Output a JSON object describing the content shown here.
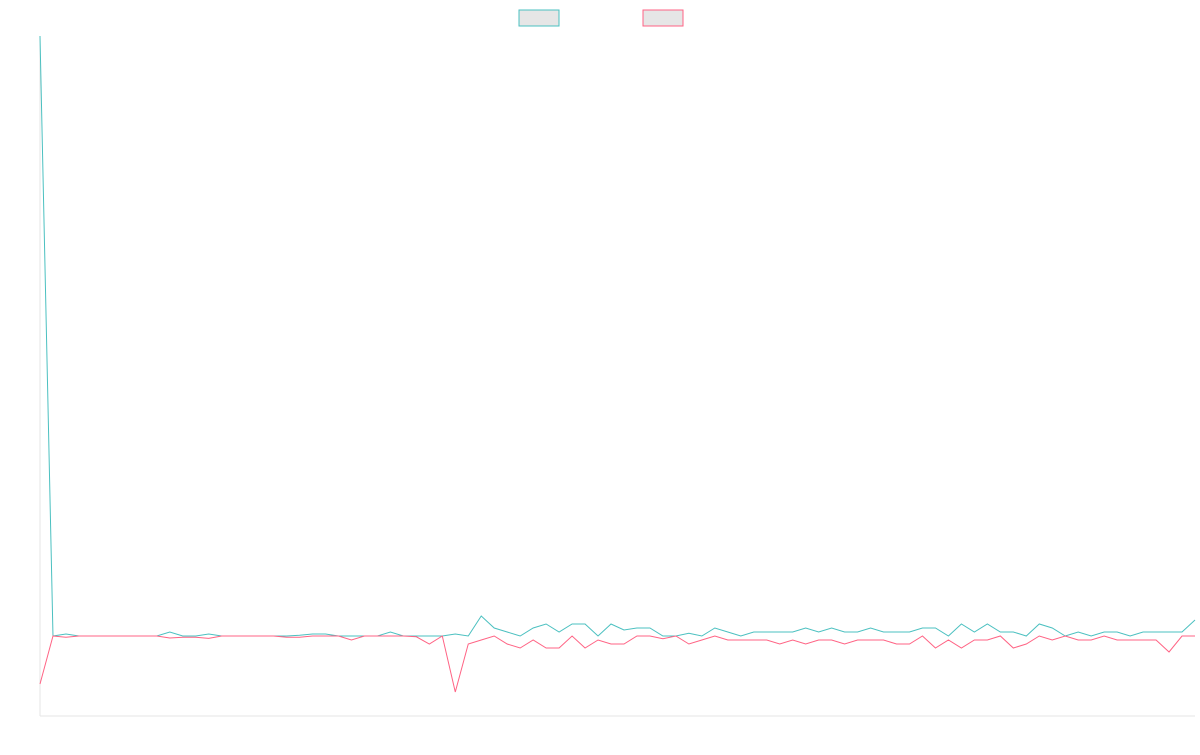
{
  "chart_data": {
    "type": "line",
    "title": "",
    "xlabel": "",
    "ylabel": "",
    "x": [
      1,
      2,
      3,
      4,
      5,
      6,
      7,
      8,
      9,
      10,
      11,
      12,
      13,
      14,
      15,
      16,
      17,
      18,
      19,
      20,
      21,
      22,
      23,
      24,
      25,
      26,
      27,
      28,
      29,
      30,
      31,
      32,
      33,
      34,
      35,
      36,
      37,
      38,
      39,
      40,
      41,
      42,
      43,
      44,
      45,
      46,
      47,
      48,
      49,
      50,
      51,
      52,
      53,
      54,
      55,
      56,
      57,
      58,
      59,
      60,
      61,
      62,
      63,
      64,
      65,
      66,
      67,
      68,
      69,
      70,
      71,
      72,
      73,
      74,
      75,
      76,
      77,
      78,
      79,
      80,
      81,
      82,
      83,
      84,
      85,
      86,
      87,
      88,
      89,
      90
    ],
    "ylim": [
      -20,
      150
    ],
    "grid": false,
    "legend_position": "top-center",
    "series": [
      {
        "name": "",
        "color": "#4bc0c0",
        "values": [
          150,
          0,
          0.5,
          0,
          0,
          0,
          0,
          0,
          0,
          0,
          1,
          0,
          0,
          0.5,
          0,
          0,
          0,
          0,
          0,
          0,
          0.2,
          0.5,
          0.5,
          0,
          0,
          0,
          0,
          1,
          0,
          0,
          0,
          0,
          0.5,
          0,
          5,
          2,
          1,
          0,
          2,
          3,
          1,
          3,
          3,
          0,
          3,
          1.5,
          2,
          2,
          0,
          0,
          0.7,
          0,
          2,
          1,
          0,
          1,
          1,
          1,
          1,
          2,
          1,
          2,
          1,
          1,
          2,
          1,
          1,
          1,
          2,
          2,
          0,
          3,
          1,
          3,
          1,
          1,
          0,
          3,
          2,
          0,
          1,
          0,
          1,
          1,
          0,
          1,
          1,
          1,
          1,
          4
        ]
      },
      {
        "name": "",
        "color": "#ff6384",
        "values": [
          -12,
          0,
          -0.3,
          0,
          0,
          0,
          0,
          0,
          0,
          0,
          -0.5,
          -0.3,
          -0.3,
          -0.6,
          0,
          0,
          0,
          0,
          0,
          -0.3,
          -0.3,
          0,
          0,
          0,
          -1,
          0,
          0,
          0,
          0,
          -0.2,
          -2,
          0,
          -14,
          -2,
          -1,
          0,
          -2,
          -3,
          -1,
          -3,
          -3,
          0,
          -3,
          -1,
          -2,
          -2,
          0,
          0,
          -0.7,
          0,
          -2,
          -1,
          0,
          -1,
          -1,
          -1,
          -1,
          -2,
          -1,
          -2,
          -1,
          -1,
          -2,
          -1,
          -1,
          -1,
          -2,
          -2,
          0,
          -3,
          -1,
          -3,
          -1,
          -1,
          0,
          -3,
          -2,
          0,
          -1,
          0,
          -1,
          -1,
          0,
          -1,
          -1,
          -1,
          -1,
          -4,
          0,
          0
        ]
      }
    ]
  }
}
